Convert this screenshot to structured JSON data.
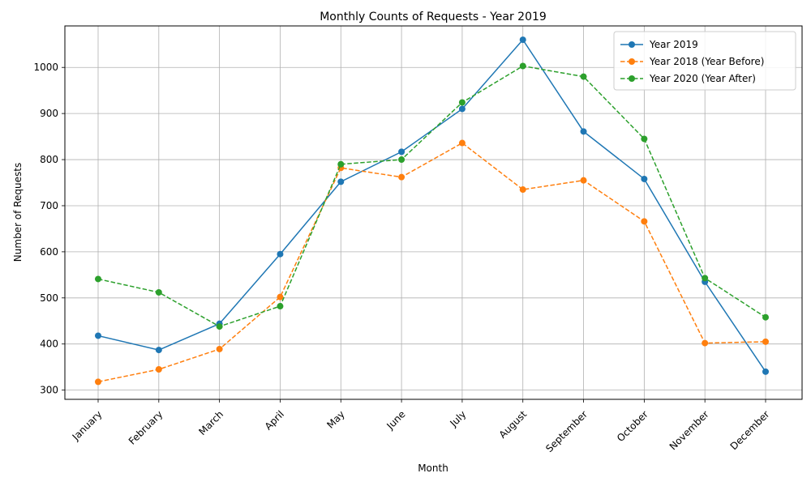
{
  "chart_data": {
    "type": "line",
    "title": "Monthly Counts of Requests - Year 2019",
    "xlabel": "Month",
    "ylabel": "Number of Requests",
    "categories": [
      "January",
      "February",
      "March",
      "April",
      "May",
      "June",
      "July",
      "August",
      "September",
      "October",
      "November",
      "December"
    ],
    "ylim": [
      280,
      1090
    ],
    "yticks": [
      300,
      400,
      500,
      600,
      700,
      800,
      900,
      1000
    ],
    "grid": true,
    "legend_position": "top-right",
    "series": [
      {
        "name": "Year 2019",
        "color": "#1f77b4",
        "linestyle": "solid",
        "values": [
          418,
          387,
          444,
          595,
          752,
          817,
          910,
          1060,
          861,
          758,
          535,
          340
        ]
      },
      {
        "name": "Year 2018 (Year Before)",
        "color": "#ff7f0e",
        "linestyle": "dashed",
        "values": [
          318,
          345,
          389,
          502,
          782,
          762,
          836,
          735,
          755,
          666,
          402,
          405
        ]
      },
      {
        "name": "Year 2020 (Year After)",
        "color": "#2ca02c",
        "linestyle": "dashed",
        "values": [
          541,
          512,
          438,
          482,
          790,
          800,
          924,
          1003,
          980,
          845,
          543,
          458
        ]
      }
    ]
  }
}
